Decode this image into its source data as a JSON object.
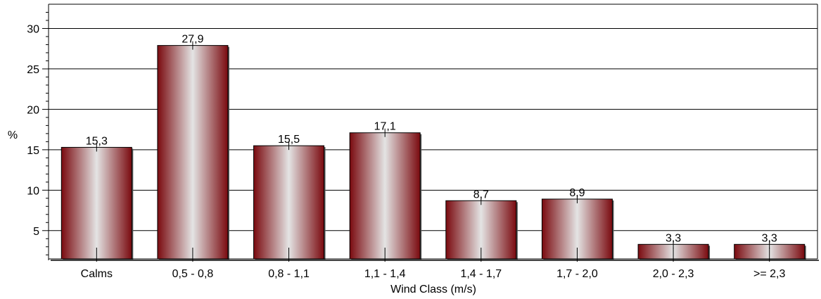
{
  "chart_data": {
    "type": "bar",
    "categories": [
      "Calms",
      "0,5 -  0,8",
      "0,8 -  1,1",
      "1,1 -  1,4",
      "1,4 -  1,7",
      "1,7 -  2,0",
      "2,0 -  2,3",
      ">=  2,3"
    ],
    "values": [
      15.3,
      27.9,
      15.5,
      17.1,
      8.7,
      8.9,
      3.3,
      3.3
    ],
    "value_labels": [
      "15,3",
      "27,9",
      "15,5",
      "17,1",
      "8,7",
      "8,9",
      "3,3",
      "3,3"
    ],
    "xlabel": "Wind Class (m/s)",
    "ylabel": "%",
    "ylim": [
      1.5,
      33
    ],
    "yticks": [
      5,
      10,
      15,
      20,
      25,
      30
    ],
    "grid": true,
    "legend": "none",
    "bar_color_dark": "#7a0a0f",
    "bar_color_light": "#e4e4e4"
  }
}
